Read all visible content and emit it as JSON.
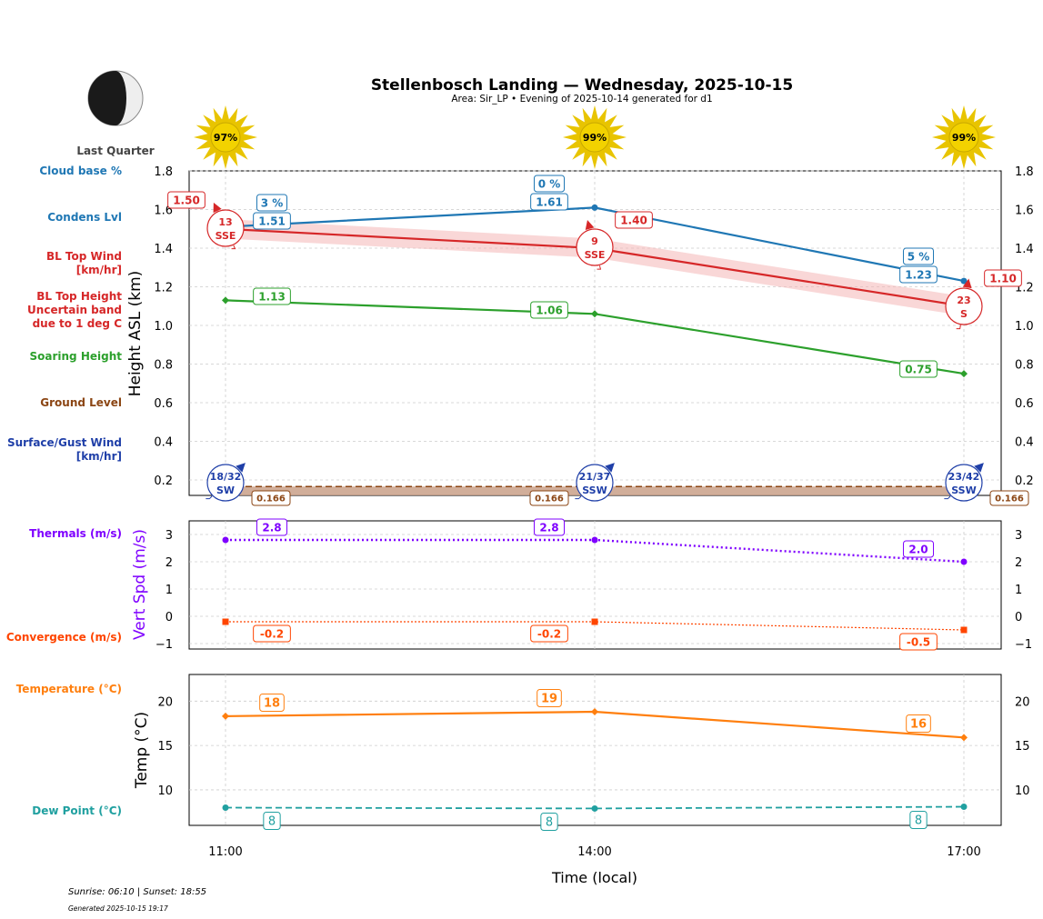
{
  "header": {
    "title": "Stellenbosch Landing — Wednesday, 2025-10-15",
    "subtitle": "Area: Sir_LP • Evening of 2025-10-14 generated for d1",
    "moon_phase": "Last Quarter"
  },
  "footer": {
    "sun": "Sunrise: 06:10 | Sunset: 18:55",
    "generated": "Generated 2025-10-15 19:17"
  },
  "colors": {
    "cloud": "#1f77b4",
    "bltop": "#d62728",
    "soaring": "#2ca02c",
    "ground": "#8b4513",
    "wind": "#1f3fa8",
    "thermal": "#7f00ff",
    "convergence": "#ff4500",
    "temp": "#ff7f0e",
    "dew": "#20a0a0"
  },
  "icons": {
    "sun": "sun-icon",
    "moon": "moon-last-quarter-icon"
  },
  "chart_data": [
    {
      "type": "line",
      "ylabel": "Height ASL (km)",
      "x": [
        "11:00",
        "14:00",
        "17:00"
      ],
      "ylim": [
        0.12,
        1.8
      ],
      "yticks": [
        "0.2",
        "0.4",
        "0.6",
        "0.8",
        "1.0",
        "1.2",
        "1.4",
        "1.6",
        "1.8"
      ],
      "grid": true,
      "sun_percent": [
        "97%",
        "99%",
        "99%"
      ],
      "side_labels": [
        "Cloud base %",
        "Condens Lvl",
        "BL Top Wind [km/hr]",
        "BL Top Height Uncertain band due to 1 deg C",
        "Soaring Height",
        "Ground Level",
        "Surface/Gust Wind [km/hr]"
      ],
      "series": [
        {
          "name": "Condens Lvl",
          "values": [
            1.51,
            1.61,
            1.23
          ],
          "labels": [
            "1.51",
            "1.61",
            "1.23"
          ],
          "cloud_base": [
            "3 %",
            "0 %",
            "5 %"
          ]
        },
        {
          "name": "BL Top Height",
          "values": [
            1.5,
            1.4,
            1.1
          ],
          "labels": [
            "1.50",
            "1.40",
            "1.10"
          ],
          "band_low": [
            1.45,
            1.35,
            1.05
          ],
          "band_high": [
            1.55,
            1.45,
            1.15
          ]
        },
        {
          "name": "Soaring Height",
          "values": [
            1.13,
            1.06,
            0.75
          ],
          "labels": [
            "1.13",
            "1.06",
            "0.75"
          ]
        },
        {
          "name": "Ground Level",
          "values": [
            0.166,
            0.166,
            0.166
          ],
          "labels": [
            "0.166",
            "0.166",
            "0.166"
          ]
        }
      ],
      "bl_top_wind": [
        {
          "speed": "13",
          "dir": "SSE"
        },
        {
          "speed": "9",
          "dir": "SSE"
        },
        {
          "speed": "23",
          "dir": "S"
        }
      ],
      "surface_wind": [
        {
          "speed": "18/32",
          "dir": "SW"
        },
        {
          "speed": "21/37",
          "dir": "SSW"
        },
        {
          "speed": "23/42",
          "dir": "SSW"
        }
      ]
    },
    {
      "type": "line",
      "ylabel": "Vert Spd (m/s)",
      "x": [
        "11:00",
        "14:00",
        "17:00"
      ],
      "ylim": [
        -1.2,
        3.5
      ],
      "yticks": [
        "−1",
        "0",
        "1",
        "2",
        "3"
      ],
      "grid": true,
      "side_labels": [
        "Thermals (m/s)",
        "Convergence (m/s)"
      ],
      "series": [
        {
          "name": "Thermals (m/s)",
          "values": [
            2.8,
            2.8,
            2.0
          ],
          "labels": [
            "2.8",
            "2.8",
            "2.0"
          ]
        },
        {
          "name": "Convergence (m/s)",
          "values": [
            -0.2,
            -0.2,
            -0.5
          ],
          "labels": [
            "-0.2",
            "-0.2",
            "-0.5"
          ]
        }
      ]
    },
    {
      "type": "line",
      "ylabel": "Temp (°C)",
      "xlabel": "Time (local)",
      "x": [
        "11:00",
        "14:00",
        "17:00"
      ],
      "ylim": [
        6,
        23
      ],
      "yticks": [
        "10",
        "15",
        "20"
      ],
      "grid": true,
      "side_labels": [
        "Temperature (°C)",
        "Dew Point (°C)"
      ],
      "series": [
        {
          "name": "Temperature (°C)",
          "values": [
            18.3,
            18.8,
            15.9
          ],
          "labels": [
            "18",
            "19",
            "16"
          ]
        },
        {
          "name": "Dew Point (°C)",
          "values": [
            8.0,
            7.9,
            8.1
          ],
          "labels": [
            "8",
            "8",
            "8"
          ]
        }
      ]
    }
  ]
}
